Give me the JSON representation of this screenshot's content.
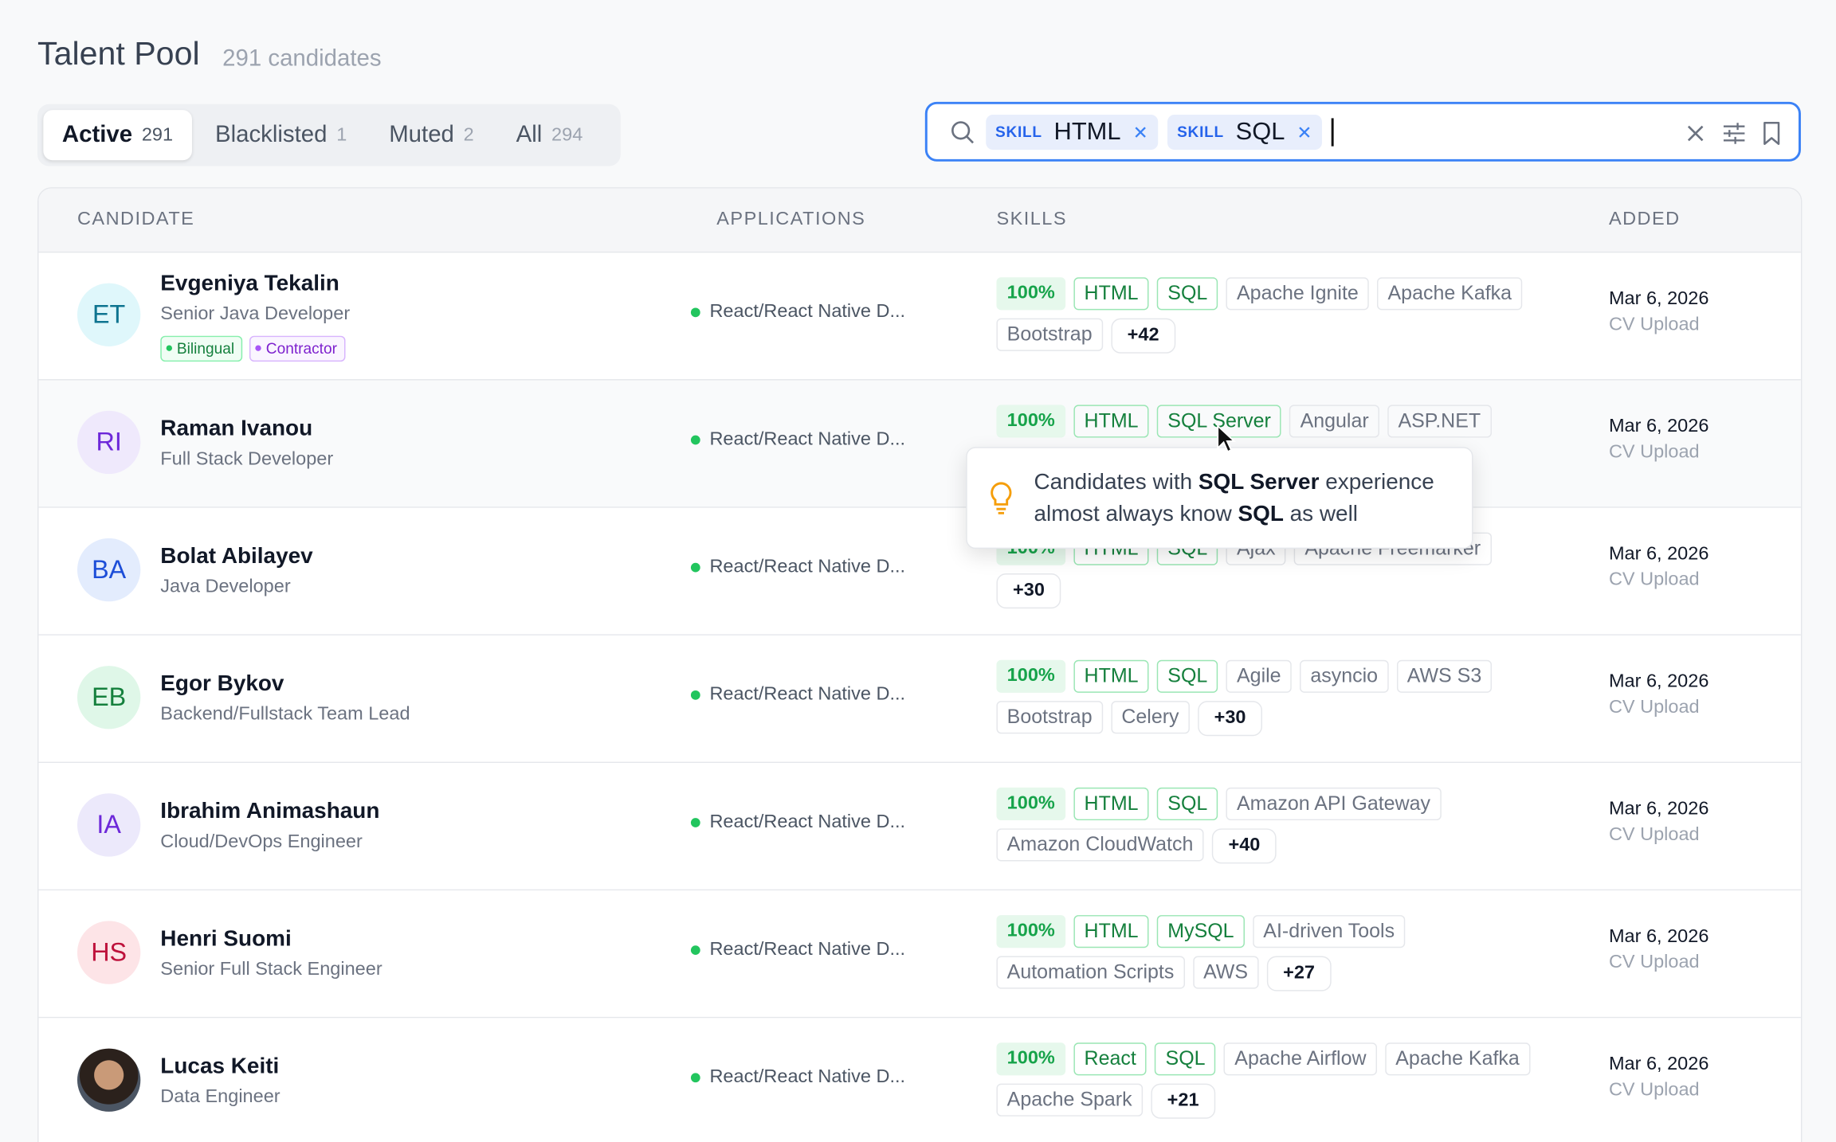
{
  "header": {
    "title": "Talent Pool",
    "count": "291 candidates"
  },
  "tabs": [
    {
      "label": "Active",
      "count": "291"
    },
    {
      "label": "Blacklisted",
      "count": "1"
    },
    {
      "label": "Muted",
      "count": "2"
    },
    {
      "label": "All",
      "count": "294"
    }
  ],
  "active_tab": 0,
  "search": {
    "chips": [
      {
        "kind": "SKILL",
        "value": "HTML"
      },
      {
        "kind": "SKILL",
        "value": "SQL"
      }
    ]
  },
  "table": {
    "columns": [
      "CANDIDATE",
      "APPLICATIONS",
      "SKILLS",
      "ADDED"
    ],
    "rows": [
      {
        "initials": "ET",
        "name": "Evgeniya Tekalin",
        "role": "Senior Java Developer",
        "tags": [
          "Bilingual",
          "Contractor"
        ],
        "application": "React/React Native D...",
        "match": "100%",
        "matched": [
          "HTML",
          "SQL"
        ],
        "skills": [
          "Apache Ignite",
          "Apache Kafka",
          "Bootstrap"
        ],
        "more": "+42",
        "date": "Mar 6, 2026",
        "source": "CV Upload"
      },
      {
        "initials": "RI",
        "name": "Raman Ivanou",
        "role": "Full Stack Developer",
        "tags": [],
        "application": "React/React Native D...",
        "match": "100%",
        "matched": [
          "HTML",
          "SQL Server"
        ],
        "skills": [
          "Angular",
          "ASP.NET"
        ],
        "more": null,
        "date": "Mar 6, 2026",
        "source": "CV Upload"
      },
      {
        "initials": "BA",
        "name": "Bolat Abilayev",
        "role": "Java Developer",
        "tags": [],
        "application": "React/React Native D...",
        "match": "100%",
        "matched": [
          "HTML",
          "SQL"
        ],
        "skills": [
          "Ajax",
          "Apache Freemarker"
        ],
        "more": "+30",
        "date": "Mar 6, 2026",
        "source": "CV Upload"
      },
      {
        "initials": "EB",
        "name": "Egor Bykov",
        "role": "Backend/Fullstack Team Lead",
        "tags": [],
        "application": "React/React Native D...",
        "match": "100%",
        "matched": [
          "HTML",
          "SQL"
        ],
        "skills": [
          "Agile",
          "asyncio",
          "AWS S3",
          "Bootstrap",
          "Celery"
        ],
        "more": "+30",
        "date": "Mar 6, 2026",
        "source": "CV Upload"
      },
      {
        "initials": "IA",
        "name": "Ibrahim Animashaun",
        "role": "Cloud/DevOps Engineer",
        "tags": [],
        "application": "React/React Native D...",
        "match": "100%",
        "matched": [
          "HTML",
          "SQL"
        ],
        "skills": [
          "Amazon API Gateway",
          "Amazon CloudWatch"
        ],
        "more": "+40",
        "date": "Mar 6, 2026",
        "source": "CV Upload"
      },
      {
        "initials": "HS",
        "name": "Henri Suomi",
        "role": "Senior Full Stack Engineer",
        "tags": [],
        "application": "React/React Native D...",
        "match": "100%",
        "matched": [
          "HTML",
          "MySQL"
        ],
        "skills": [
          "AI-driven Tools",
          "Automation Scripts",
          "AWS"
        ],
        "more": "+27",
        "date": "Mar 6, 2026",
        "source": "CV Upload"
      },
      {
        "initials": null,
        "name": "Lucas Keiti",
        "role": "Data Engineer",
        "tags": [],
        "application": "React/React Native D...",
        "match": "100%",
        "matched": [
          "React",
          "SQL"
        ],
        "skills": [
          "Apache Airflow",
          "Apache Kafka",
          "Apache Spark"
        ],
        "more": "+21",
        "date": "Mar 6, 2026",
        "source": "CV Upload"
      }
    ]
  },
  "tooltip": {
    "parts": [
      {
        "text": "Candidates with ",
        "bold": false
      },
      {
        "text": "SQL Server",
        "bold": true
      },
      {
        "text": " experience almost always know ",
        "bold": false
      },
      {
        "text": "SQL",
        "bold": true
      },
      {
        "text": " as well",
        "bold": false
      }
    ]
  }
}
